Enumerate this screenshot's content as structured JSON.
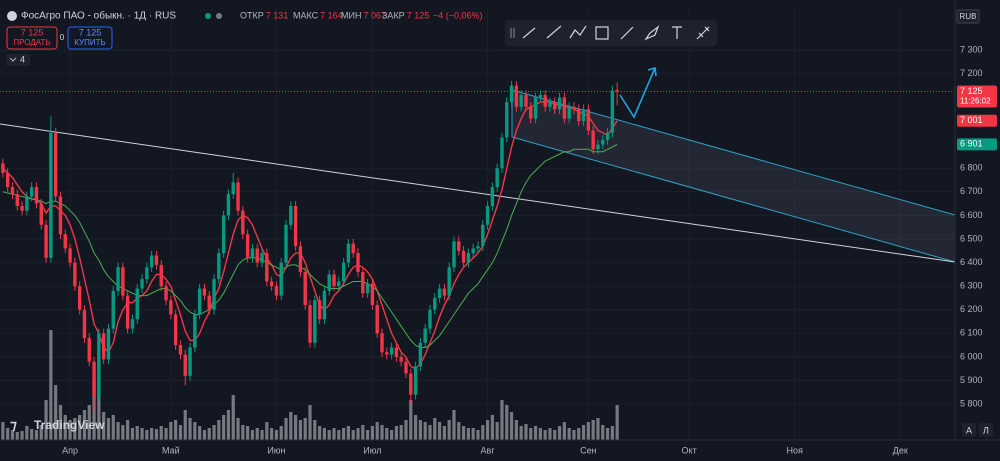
{
  "header": {
    "symbol": "ФосАгро ПАО - обыкн. · 1Д · RUS",
    "ohlc": [
      {
        "label": "ОТКР",
        "value": "7 131"
      },
      {
        "label": "МАКС",
        "value": "7 164"
      },
      {
        "label": "МИН",
        "value": "7 067"
      },
      {
        "label": "ЗАКР",
        "value": "7 125"
      }
    ],
    "change": "−4 (−0,06%)"
  },
  "trade": {
    "sell_price": "7 125",
    "sell": "ПРОДАТЬ",
    "spread": "0",
    "buy_price": "7 125",
    "buy": "КУПИТЬ"
  },
  "indicators_count": "4",
  "currency": "RUB",
  "brand": "TradingView",
  "scale_buttons": [
    "А",
    "Л"
  ],
  "chart_data": {
    "type": "candlestick",
    "colors": {
      "up": "#089981",
      "down": "#f23645"
    },
    "grid": true,
    "ylim": [
      5648,
      7479
    ],
    "yticks": [
      {
        "value": 7300,
        "label": "7 300"
      },
      {
        "value": 7200,
        "label": "7 200"
      },
      {
        "value": 6800,
        "label": "6 800"
      },
      {
        "value": 6700,
        "label": "6 700"
      },
      {
        "value": 6600,
        "label": "6 600"
      },
      {
        "value": 6500,
        "label": "6 500"
      },
      {
        "value": 6400,
        "label": "6 400"
      },
      {
        "value": 6300,
        "label": "6 300"
      },
      {
        "value": 6200,
        "label": "6 200"
      },
      {
        "value": 6100,
        "label": "6 100"
      },
      {
        "value": 6000,
        "label": "6 000"
      },
      {
        "value": 5900,
        "label": "5 900"
      },
      {
        "value": 5800,
        "label": "5 800"
      }
    ],
    "xlim": [
      -0.6,
      198.4
    ],
    "xticks": [
      {
        "value": 14,
        "label": "Апр"
      },
      {
        "value": 35,
        "label": "Май"
      },
      {
        "value": 57,
        "label": "Июн"
      },
      {
        "value": 77,
        "label": "Июл"
      },
      {
        "value": 101,
        "label": "Авг"
      },
      {
        "value": 122,
        "label": "Сен"
      },
      {
        "value": 143,
        "label": "Окт"
      },
      {
        "value": 165,
        "label": "Ноя"
      },
      {
        "value": 187,
        "label": "Дек"
      }
    ],
    "candles": [
      [
        6820,
        6840,
        6760,
        6780
      ],
      [
        6780,
        6800,
        6700,
        6720
      ],
      [
        6720,
        6740,
        6670,
        6690
      ],
      [
        6690,
        6710,
        6620,
        6640
      ],
      [
        6640,
        6660,
        6600,
        6620
      ],
      [
        6620,
        6700,
        6600,
        6680
      ],
      [
        6680,
        6740,
        6660,
        6720
      ],
      [
        6720,
        6740,
        6630,
        6650
      ],
      [
        6650,
        6670,
        6540,
        6560
      ],
      [
        6560,
        6580,
        6400,
        6420
      ],
      [
        6420,
        7020,
        6400,
        6950
      ],
      [
        6950,
        6970,
        6660,
        6680
      ],
      [
        6680,
        6700,
        6500,
        6520
      ],
      [
        6520,
        6540,
        6440,
        6460
      ],
      [
        6460,
        6480,
        6380,
        6400
      ],
      [
        6400,
        6420,
        6280,
        6300
      ],
      [
        6300,
        6320,
        6180,
        6200
      ],
      [
        6200,
        6220,
        6060,
        6080
      ],
      [
        6080,
        6100,
        5960,
        5980
      ],
      [
        5980,
        6000,
        5770,
        5830
      ],
      [
        5830,
        6120,
        5810,
        6100
      ],
      [
        6100,
        6120,
        5970,
        5990
      ],
      [
        5990,
        6140,
        5970,
        6120
      ],
      [
        6120,
        6300,
        6100,
        6280
      ],
      [
        6280,
        6400,
        6260,
        6380
      ],
      [
        6380,
        6400,
        6240,
        6260
      ],
      [
        6260,
        6280,
        6100,
        6120
      ],
      [
        6120,
        6180,
        6100,
        6160
      ],
      [
        6160,
        6310,
        6140,
        6290
      ],
      [
        6290,
        6350,
        6270,
        6330
      ],
      [
        6330,
        6400,
        6310,
        6380
      ],
      [
        6380,
        6450,
        6360,
        6430
      ],
      [
        6430,
        6450,
        6370,
        6390
      ],
      [
        6390,
        6410,
        6280,
        6300
      ],
      [
        6300,
        6320,
        6220,
        6240
      ],
      [
        6240,
        6260,
        6160,
        6180
      ],
      [
        6180,
        6200,
        6030,
        6050
      ],
      [
        6050,
        6070,
        5990,
        6010
      ],
      [
        6010,
        6030,
        5880,
        5920
      ],
      [
        5920,
        6060,
        5900,
        6040
      ],
      [
        6040,
        6200,
        6020,
        6180
      ],
      [
        6180,
        6310,
        6160,
        6290
      ],
      [
        6290,
        6310,
        6240,
        6260
      ],
      [
        6260,
        6280,
        6180,
        6200
      ],
      [
        6200,
        6350,
        6180,
        6330
      ],
      [
        6330,
        6460,
        6310,
        6440
      ],
      [
        6440,
        6620,
        6420,
        6600
      ],
      [
        6600,
        6710,
        6580,
        6690
      ],
      [
        6690,
        6780,
        6670,
        6740
      ],
      [
        6740,
        6760,
        6600,
        6620
      ],
      [
        6620,
        6640,
        6500,
        6520
      ],
      [
        6520,
        6540,
        6400,
        6420
      ],
      [
        6420,
        6480,
        6400,
        6460
      ],
      [
        6460,
        6480,
        6380,
        6400
      ],
      [
        6400,
        6460,
        6380,
        6440
      ],
      [
        6440,
        6460,
        6300,
        6320
      ],
      [
        6320,
        6340,
        6280,
        6300
      ],
      [
        6300,
        6320,
        6240,
        6260
      ],
      [
        6260,
        6420,
        6240,
        6400
      ],
      [
        6400,
        6580,
        6380,
        6560
      ],
      [
        6560,
        6660,
        6540,
        6640
      ],
      [
        6640,
        6660,
        6450,
        6470
      ],
      [
        6470,
        6490,
        6340,
        6360
      ],
      [
        6360,
        6380,
        6200,
        6220
      ],
      [
        6220,
        6240,
        6040,
        6060
      ],
      [
        6060,
        6260,
        6040,
        6240
      ],
      [
        6240,
        6260,
        6140,
        6160
      ],
      [
        6160,
        6300,
        6140,
        6280
      ],
      [
        6280,
        6370,
        6260,
        6350
      ],
      [
        6350,
        6370,
        6280,
        6300
      ],
      [
        6300,
        6340,
        6280,
        6320
      ],
      [
        6320,
        6420,
        6300,
        6400
      ],
      [
        6400,
        6500,
        6380,
        6480
      ],
      [
        6480,
        6500,
        6420,
        6440
      ],
      [
        6440,
        6460,
        6340,
        6360
      ],
      [
        6360,
        6380,
        6250,
        6270
      ],
      [
        6270,
        6330,
        6250,
        6310
      ],
      [
        6310,
        6330,
        6200,
        6220
      ],
      [
        6220,
        6240,
        6080,
        6100
      ],
      [
        6100,
        6120,
        6000,
        6020
      ],
      [
        6020,
        6040,
        5990,
        6010
      ],
      [
        6010,
        6060,
        5990,
        6040
      ],
      [
        6040,
        6060,
        5980,
        6000
      ],
      [
        6000,
        6020,
        5960,
        5980
      ],
      [
        5980,
        6000,
        5910,
        5930
      ],
      [
        5930,
        5950,
        5800,
        5840
      ],
      [
        5840,
        5980,
        5820,
        5960
      ],
      [
        5960,
        6080,
        5940,
        6060
      ],
      [
        6060,
        6140,
        6040,
        6120
      ],
      [
        6120,
        6220,
        6100,
        6200
      ],
      [
        6200,
        6270,
        6180,
        6250
      ],
      [
        6250,
        6310,
        6230,
        6290
      ],
      [
        6290,
        6310,
        6240,
        6260
      ],
      [
        6260,
        6400,
        6240,
        6380
      ],
      [
        6380,
        6510,
        6360,
        6490
      ],
      [
        6490,
        6510,
        6430,
        6450
      ],
      [
        6450,
        6470,
        6380,
        6400
      ],
      [
        6400,
        6460,
        6380,
        6440
      ],
      [
        6440,
        6480,
        6420,
        6460
      ],
      [
        6460,
        6490,
        6440,
        6470
      ],
      [
        6470,
        6580,
        6450,
        6560
      ],
      [
        6560,
        6660,
        6540,
        6640
      ],
      [
        6640,
        6740,
        6620,
        6720
      ],
      [
        6720,
        6820,
        6700,
        6800
      ],
      [
        6800,
        6950,
        6780,
        6930
      ],
      [
        6930,
        7100,
        6910,
        7080
      ],
      [
        7080,
        7170,
        7060,
        7150
      ],
      [
        7150,
        7170,
        7040,
        7060
      ],
      [
        7060,
        7130,
        7040,
        7110
      ],
      [
        7110,
        7130,
        7040,
        7060
      ],
      [
        7060,
        7080,
        6990,
        7010
      ],
      [
        7010,
        7120,
        6990,
        7100
      ],
      [
        7100,
        7130,
        7080,
        7110
      ],
      [
        7110,
        7130,
        7040,
        7060
      ],
      [
        7060,
        7100,
        7040,
        7080
      ],
      [
        7080,
        7100,
        7030,
        7050
      ],
      [
        7050,
        7120,
        7030,
        7100
      ],
      [
        7100,
        7120,
        6990,
        7010
      ],
      [
        7010,
        7080,
        6990,
        7060
      ],
      [
        7060,
        7080,
        7030,
        7050
      ],
      [
        7050,
        7070,
        6980,
        7000
      ],
      [
        7000,
        7070,
        6980,
        7050
      ],
      [
        7050,
        7070,
        6940,
        6960
      ],
      [
        6960,
        6980,
        6860,
        6880
      ],
      [
        6880,
        6920,
        6860,
        6900
      ],
      [
        6900,
        6940,
        6880,
        6920
      ],
      [
        6920,
        6970,
        6900,
        6950
      ],
      [
        6950,
        7150,
        6930,
        7129
      ],
      [
        7131,
        7164,
        7067,
        7125
      ]
    ],
    "volume": [
      18,
      12,
      10,
      8,
      9,
      14,
      11,
      10,
      15,
      40,
      110,
      55,
      35,
      25,
      20,
      22,
      25,
      30,
      35,
      60,
      50,
      28,
      22,
      25,
      18,
      15,
      20,
      12,
      14,
      12,
      10,
      12,
      11,
      14,
      12,
      18,
      20,
      15,
      30,
      22,
      18,
      14,
      10,
      12,
      15,
      20,
      25,
      30,
      45,
      22,
      15,
      14,
      10,
      12,
      10,
      18,
      12,
      10,
      14,
      22,
      28,
      25,
      20,
      22,
      35,
      20,
      14,
      12,
      10,
      12,
      10,
      12,
      14,
      10,
      12,
      15,
      10,
      14,
      18,
      15,
      12,
      10,
      14,
      15,
      20,
      40,
      25,
      20,
      18,
      15,
      22,
      18,
      14,
      20,
      30,
      18,
      14,
      12,
      12,
      10,
      15,
      20,
      25,
      18,
      40,
      35,
      28,
      20,
      14,
      16,
      12,
      14,
      12,
      10,
      12,
      10,
      14,
      18,
      12,
      10,
      12,
      15,
      18,
      20,
      22,
      15,
      12,
      14,
      35
    ],
    "moving_averages": [
      {
        "color": "#f23645",
        "values": [
          6800,
          6780,
          6760,
          6730,
          6700,
          6680,
          6670,
          6670,
          6650,
          6610,
          6640,
          6640,
          6620,
          6600,
          6560,
          6500,
          6420,
          6330,
          6240,
          6140,
          6100,
          6040,
          6020,
          6060,
          6150,
          6200,
          6230,
          6230,
          6250,
          6260,
          6280,
          6320,
          6350,
          6350,
          6330,
          6300,
          6240,
          6180,
          6110,
          6070,
          6070,
          6100,
          6150,
          6190,
          6250,
          6290,
          6360,
          6440,
          6520,
          6580,
          6600,
          6590,
          6560,
          6510,
          6460,
          6420,
          6390,
          6350,
          6340,
          6380,
          6420,
          6440,
          6440,
          6400,
          6340,
          6280,
          6220,
          6200,
          6220,
          6260,
          6280,
          6310,
          6350,
          6380,
          6390,
          6380,
          6360,
          6330,
          6280,
          6220,
          6160,
          6100,
          6060,
          6020,
          6000,
          5960,
          5950,
          5970,
          6010,
          6060,
          6110,
          6170,
          6220,
          6260,
          6310,
          6350,
          6380,
          6400,
          6420,
          6440,
          6470,
          6520,
          6580,
          6640,
          6710,
          6800,
          6890,
          6960,
          7010,
          7050,
          7060,
          7070,
          7080,
          7080,
          7080,
          7070,
          7070,
          7060,
          7060,
          7050,
          7040,
          7030,
          7020,
          6990,
          6960,
          6950,
          6940,
          6970,
          7001
        ]
      },
      {
        "color": "#4caf50",
        "values": [
          6700,
          6695,
          6690,
          6685,
          6680,
          6675,
          6670,
          6665,
          6660,
          6650,
          6660,
          6660,
          6650,
          6640,
          6620,
          6600,
          6570,
          6530,
          6490,
          6440,
          6410,
          6370,
          6340,
          6320,
          6300,
          6290,
          6280,
          6270,
          6260,
          6260,
          6260,
          6270,
          6280,
          6290,
          6290,
          6280,
          6260,
          6240,
          6210,
          6190,
          6180,
          6180,
          6190,
          6200,
          6220,
          6240,
          6270,
          6310,
          6350,
          6390,
          6410,
          6420,
          6420,
          6420,
          6410,
          6400,
          6390,
          6380,
          6370,
          6380,
          6390,
          6390,
          6380,
          6370,
          6350,
          6330,
          6310,
          6300,
          6290,
          6290,
          6290,
          6300,
          6310,
          6320,
          6320,
          6320,
          6310,
          6300,
          6280,
          6250,
          6220,
          6190,
          6160,
          6130,
          6100,
          6070,
          6050,
          6040,
          6040,
          6050,
          6070,
          6090,
          6120,
          6150,
          6180,
          6210,
          6240,
          6270,
          6290,
          6310,
          6340,
          6370,
          6400,
          6440,
          6490,
          6540,
          6600,
          6650,
          6700,
          6740,
          6770,
          6790,
          6810,
          6830,
          6840,
          6850,
          6860,
          6870,
          6870,
          6880,
          6880,
          6880,
          6880,
          6870,
          6870,
          6870,
          6880,
          6890,
          6901
        ]
      }
    ],
    "price_labels": [
      {
        "value": 7125,
        "label": "7 125",
        "time": "11:26:02",
        "color": "#f23645"
      },
      {
        "value": 7001,
        "label": "7 001",
        "color": "#f23645"
      },
      {
        "value": 6901,
        "label": "6 901",
        "color": "#089981"
      }
    ]
  }
}
